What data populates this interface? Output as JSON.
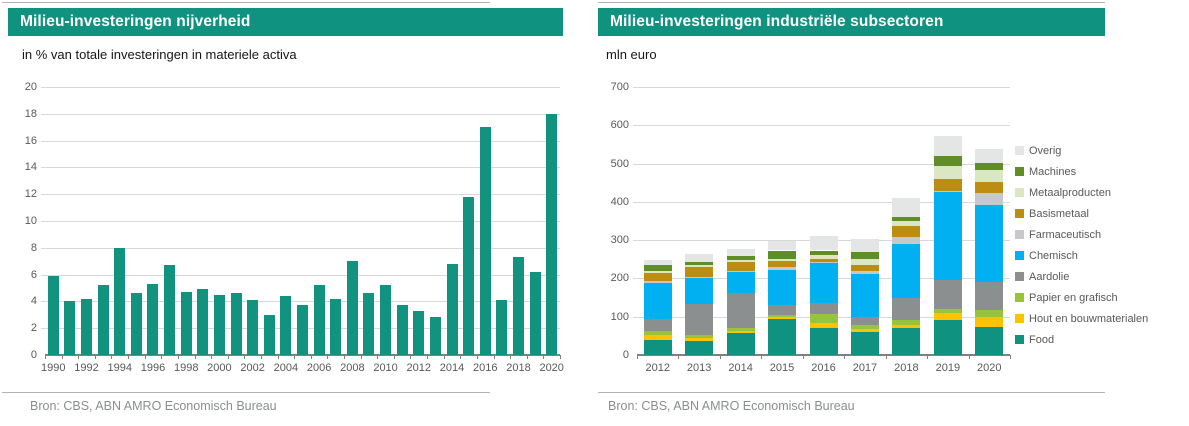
{
  "panels": [
    {
      "title": "Milieu-investeringen nijverheid",
      "subtitle": "in % van totale investeringen in materiele activa",
      "source": "Bron: CBS, ABN AMRO Economisch Bureau"
    },
    {
      "title": "Milieu-investeringen industriële subsectoren",
      "subtitle": "mln euro",
      "source": "Bron: CBS, ABN AMRO Economisch Bureau"
    }
  ],
  "colors": {
    "accent_teal": "#0F9380",
    "grid": "#d8d8d8",
    "axis": "#808080",
    "axis_text": "#595959",
    "source_text": "#8b8e8f"
  },
  "chart_data": [
    {
      "type": "bar",
      "title": "Milieu-investeringen nijverheid",
      "subtitle": "in % van totale investeringen in materiele activa",
      "xlabel": "",
      "ylabel": "% van totale investeringen in materiele activa",
      "ylim": [
        0,
        20
      ],
      "ytick_step": 2,
      "grid": true,
      "x_label_every": 2,
      "bar_color": "#129380",
      "categories": [
        "1990",
        "1991",
        "1992",
        "1993",
        "1994",
        "1995",
        "1996",
        "1997",
        "1998",
        "1999",
        "2000",
        "2001",
        "2002",
        "2003",
        "2004",
        "2005",
        "2006",
        "2007",
        "2008",
        "2009",
        "2010",
        "2011",
        "2012",
        "2013",
        "2014",
        "2015",
        "2016",
        "2017",
        "2018",
        "2019",
        "2020"
      ],
      "values": [
        5.9,
        4.0,
        4.2,
        5.2,
        8.0,
        4.6,
        5.3,
        6.7,
        4.7,
        4.9,
        4.5,
        4.6,
        4.1,
        3.0,
        4.4,
        3.7,
        5.2,
        4.2,
        7.0,
        4.6,
        5.2,
        3.7,
        3.3,
        2.8,
        6.8,
        11.8,
        17.0,
        4.1,
        7.3,
        6.2,
        18.0
      ]
    },
    {
      "type": "bar",
      "stacked": true,
      "title": "Milieu-investeringen industriële subsectoren",
      "subtitle": "mln euro",
      "xlabel": "",
      "ylabel": "mln euro",
      "ylim": [
        0,
        700
      ],
      "ytick_step": 100,
      "grid": true,
      "legend_position": "right",
      "categories": [
        "2012",
        "2013",
        "2014",
        "2015",
        "2016",
        "2017",
        "2018",
        "2019",
        "2020"
      ],
      "series": [
        {
          "name": "Food",
          "color": "#0F9380",
          "values": [
            38,
            37,
            57,
            94,
            70,
            59,
            70,
            91,
            74
          ]
        },
        {
          "name": "Hout en bouwmaterialen",
          "color": "#FCC306",
          "values": [
            14,
            8,
            5,
            4,
            13,
            9,
            9,
            19,
            24
          ]
        },
        {
          "name": "Papier en grafisch",
          "color": "#98C33C",
          "values": [
            11,
            8,
            8,
            6,
            24,
            10,
            13,
            11,
            19
          ]
        },
        {
          "name": "Aardolie",
          "color": "#8B8F90",
          "values": [
            32,
            80,
            93,
            27,
            30,
            20,
            58,
            74,
            74
          ]
        },
        {
          "name": "Chemisch",
          "color": "#00B0F0",
          "values": [
            93,
            67,
            53,
            92,
            104,
            114,
            140,
            231,
            200
          ]
        },
        {
          "name": "Farmaceutisch",
          "color": "#C6C8C9",
          "values": [
            5,
            4,
            4,
            6,
            3,
            7,
            17,
            3,
            32
          ]
        },
        {
          "name": "Basismetaal",
          "color": "#BC8D10",
          "values": [
            22,
            25,
            22,
            17,
            7,
            15,
            30,
            30,
            29
          ]
        },
        {
          "name": "Metaalproducten",
          "color": "#DAE7C2",
          "values": [
            5,
            6,
            7,
            6,
            11,
            17,
            14,
            35,
            30
          ]
        },
        {
          "name": "Machines",
          "color": "#5E8E25",
          "values": [
            15,
            8,
            10,
            21,
            11,
            17,
            10,
            26,
            19
          ]
        },
        {
          "name": "Overig",
          "color": "#E4E5E5",
          "values": [
            12,
            20,
            17,
            26,
            38,
            35,
            48,
            52,
            36
          ]
        }
      ],
      "legend_order_top_to_bottom": [
        "Overig",
        "Machines",
        "Metaalproducten",
        "Basismetaal",
        "Farmaceutisch",
        "Chemisch",
        "Aardolie",
        "Papier en grafisch",
        "Hout en bouwmaterialen",
        "Food"
      ]
    }
  ]
}
